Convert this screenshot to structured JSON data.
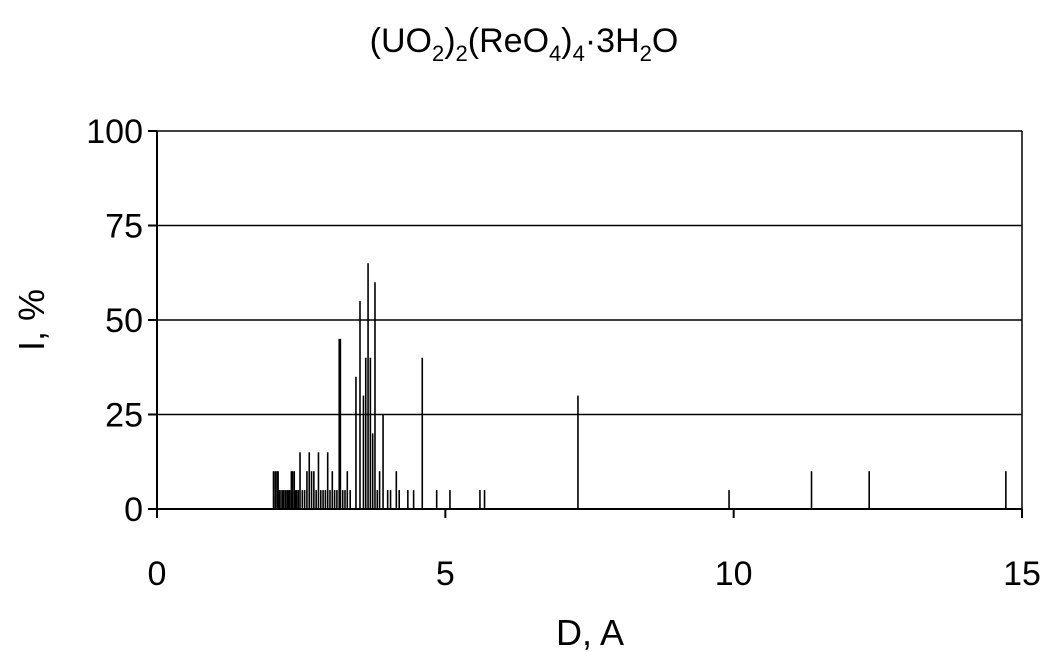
{
  "chart_data": {
    "type": "bar",
    "title": {
      "main": "(UO",
      "sub1": "2",
      "mid1": ")",
      "sub2": "2",
      "mid2": "(ReO",
      "sub3": "4",
      "mid3": ")",
      "sub4": "4",
      "mid4": "·3H",
      "sub5": "2",
      "end": "O"
    },
    "xlabel": "D, A",
    "ylabel": "I, %",
    "xlim": [
      0,
      15
    ],
    "ylim": [
      0,
      100
    ],
    "xticks": [
      0,
      5,
      10,
      15
    ],
    "yticks": [
      0,
      25,
      50,
      75,
      100
    ],
    "grid": "horizontal",
    "legend": "none",
    "colors": {
      "bars": "#000000",
      "axes": "#000000",
      "grid": "#000000",
      "background": "#ffffff"
    },
    "series": [
      {
        "x": [
          2.02,
          2.05,
          2.08,
          2.1,
          2.12,
          2.15,
          2.18,
          2.2,
          2.23,
          2.26,
          2.28,
          2.3,
          2.33,
          2.35,
          2.38,
          2.4,
          2.42,
          2.45,
          2.48,
          2.52,
          2.56,
          2.6,
          2.64,
          2.68,
          2.72,
          2.76,
          2.8,
          2.84,
          2.88,
          2.92,
          2.96,
          3.0,
          3.04,
          3.08,
          3.12,
          3.16,
          3.18,
          3.22,
          3.26,
          3.3,
          3.35,
          3.45,
          3.52,
          3.58,
          3.62,
          3.66,
          3.7,
          3.74,
          3.78,
          3.82,
          3.86,
          3.92,
          4.0,
          4.05,
          4.15,
          4.2,
          4.35,
          4.45,
          4.6,
          4.85,
          5.08,
          5.6,
          5.68,
          7.3,
          9.92,
          11.35,
          12.35,
          14.72
        ],
        "values": [
          10,
          10,
          10,
          10,
          5,
          5,
          5,
          5,
          5,
          5,
          5,
          5,
          10,
          10,
          10,
          5,
          5,
          5,
          15,
          5,
          5,
          10,
          15,
          10,
          10,
          5,
          15,
          5,
          5,
          5,
          15,
          5,
          10,
          5,
          5,
          45,
          45,
          5,
          5,
          10,
          5,
          35,
          55,
          30,
          40,
          65,
          40,
          20,
          60,
          5,
          10,
          25,
          5,
          5,
          10,
          5,
          5,
          5,
          40,
          5,
          5,
          5,
          5,
          30,
          5,
          10,
          10,
          10
        ]
      }
    ]
  }
}
